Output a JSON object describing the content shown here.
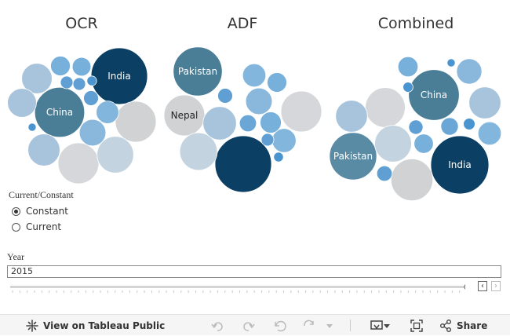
{
  "chart_data": [
    {
      "type": "bubble",
      "title": "OCR",
      "bubbles": [
        {
          "label": "India",
          "value": 100,
          "color": "#0b3f63"
        },
        {
          "label": "China",
          "value": 78,
          "color": "#4a7e96"
        },
        {
          "label": "",
          "value": 52,
          "color": "#d0d2d4"
        },
        {
          "label": "",
          "value": 52,
          "color": "#d5d7da"
        },
        {
          "label": "",
          "value": 42,
          "color": "#c3d3e0"
        },
        {
          "label": "",
          "value": 32,
          "color": "#a8c4dc"
        },
        {
          "label": "",
          "value": 29,
          "color": "#a8c4dc"
        },
        {
          "label": "",
          "value": 26,
          "color": "#a8c4dc"
        },
        {
          "label": "",
          "value": 22,
          "color": "#8ab7dc"
        },
        {
          "label": "",
          "value": 16,
          "color": "#82b6dd"
        },
        {
          "label": "",
          "value": 12,
          "color": "#78b0dc"
        },
        {
          "label": "",
          "value": 11,
          "color": "#78b0dc"
        },
        {
          "label": "",
          "value": 7,
          "color": "#5f9fd3"
        },
        {
          "label": "",
          "value": 5,
          "color": "#5f9fd3"
        },
        {
          "label": "",
          "value": 5,
          "color": "#5f9fd3"
        },
        {
          "label": "",
          "value": 3,
          "color": "#4a94cf"
        },
        {
          "label": "",
          "value": 2,
          "color": "#4a94cf"
        }
      ]
    },
    {
      "type": "bubble",
      "title": "ADF",
      "bubbles": [
        {
          "label": "",
          "value": 100,
          "color": "#0b3f63"
        },
        {
          "label": "Pakistan",
          "value": 75,
          "color": "#4a7e96"
        },
        {
          "label": "Nepal",
          "value": 52,
          "color": "#d0d2d4"
        },
        {
          "label": "",
          "value": 52,
          "color": "#d5d7da"
        },
        {
          "label": "",
          "value": 44,
          "color": "#c3d3e0"
        },
        {
          "label": "",
          "value": 35,
          "color": "#a8c4dc"
        },
        {
          "label": "",
          "value": 22,
          "color": "#8ab7dc"
        },
        {
          "label": "",
          "value": 18,
          "color": "#82b6dd"
        },
        {
          "label": "",
          "value": 17,
          "color": "#82b6dd"
        },
        {
          "label": "",
          "value": 14,
          "color": "#78b0dc"
        },
        {
          "label": "",
          "value": 12,
          "color": "#78b0dc"
        },
        {
          "label": "",
          "value": 9,
          "color": "#6aa6d6"
        },
        {
          "label": "",
          "value": 7,
          "color": "#5f9fd3"
        },
        {
          "label": "",
          "value": 5,
          "color": "#5f9fd3"
        },
        {
          "label": "",
          "value": 3,
          "color": "#4a94cf"
        }
      ]
    },
    {
      "type": "bubble",
      "title": "Combined",
      "bubbles": [
        {
          "label": "India",
          "value": 100,
          "color": "#0b3f63"
        },
        {
          "label": "China",
          "value": 76,
          "color": "#4a7e96"
        },
        {
          "label": "Pakistan",
          "value": 66,
          "color": "#5a8ba5"
        },
        {
          "label": "",
          "value": 52,
          "color": "#d0d2d4"
        },
        {
          "label": "",
          "value": 47,
          "color": "#d5d7da"
        },
        {
          "label": "",
          "value": 40,
          "color": "#c3d3e0"
        },
        {
          "label": "",
          "value": 30,
          "color": "#a8c4dc"
        },
        {
          "label": "",
          "value": 30,
          "color": "#a8c4dc"
        },
        {
          "label": "",
          "value": 19,
          "color": "#8ab7dc"
        },
        {
          "label": "",
          "value": 16,
          "color": "#82b6dd"
        },
        {
          "label": "",
          "value": 12,
          "color": "#78b0dc"
        },
        {
          "label": "",
          "value": 11,
          "color": "#78b0dc"
        },
        {
          "label": "",
          "value": 9,
          "color": "#6aa6d6"
        },
        {
          "label": "",
          "value": 7,
          "color": "#5f9fd3"
        },
        {
          "label": "",
          "value": 6,
          "color": "#5f9fd3"
        },
        {
          "label": "",
          "value": 4,
          "color": "#4a94cf"
        },
        {
          "label": "",
          "value": 3,
          "color": "#4a94cf"
        },
        {
          "label": "",
          "value": 2,
          "color": "#4a94cf"
        }
      ]
    }
  ],
  "parameter": {
    "title": "Current/Constant",
    "options": [
      {
        "label": "Constant",
        "selected": true
      },
      {
        "label": "Current",
        "selected": false
      }
    ]
  },
  "year_filter": {
    "title": "Year",
    "value": "2015",
    "slider_position": 1.0
  },
  "slider_controls": {
    "prev_icon": "chevron-left-icon",
    "next_icon": "chevron-right-icon"
  },
  "toolbar": {
    "view_label": "View on Tableau Public",
    "share_label": "Share",
    "icons": [
      "tableau-logo-icon",
      "undo-icon",
      "redo-icon",
      "revert-icon",
      "refresh-icon",
      "pause-dropdown-icon",
      "download-icon",
      "fullscreen-icon",
      "share-icon"
    ]
  },
  "colors": {
    "dark_navy": "#0b3f63",
    "teal": "#4a7e96",
    "light_gray": "#d0d2d4",
    "light_blue": "#a8c4dc",
    "mid_blue": "#5f9fd3"
  }
}
